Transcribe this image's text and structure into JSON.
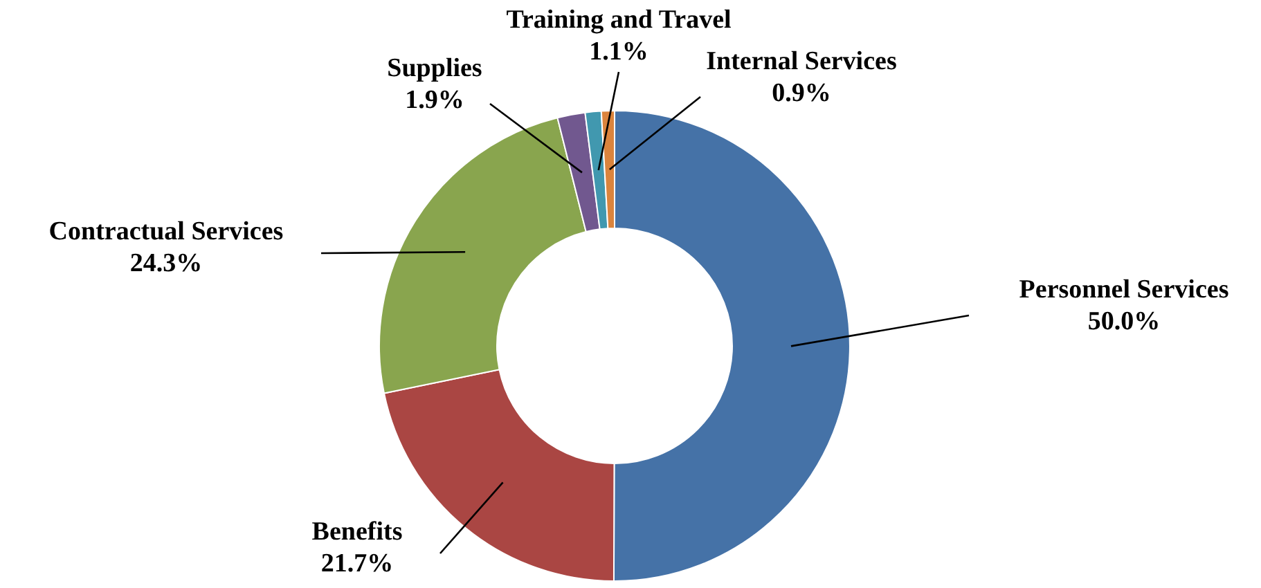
{
  "chart_data": {
    "type": "donut",
    "categories": [
      "Personnel Services",
      "Benefits",
      "Contractual Services",
      "Supplies",
      "Training and Travel",
      "Internal Services"
    ],
    "values": [
      50.0,
      21.7,
      24.3,
      1.9,
      1.1,
      0.9
    ],
    "value_labels": [
      "50.0%",
      "21.7%",
      "24.3%",
      "1.9%",
      "1.1%",
      "0.9%"
    ],
    "colors": [
      "#4572a7",
      "#aa4643",
      "#89a54e",
      "#71588f",
      "#4198af",
      "#db843d"
    ]
  }
}
